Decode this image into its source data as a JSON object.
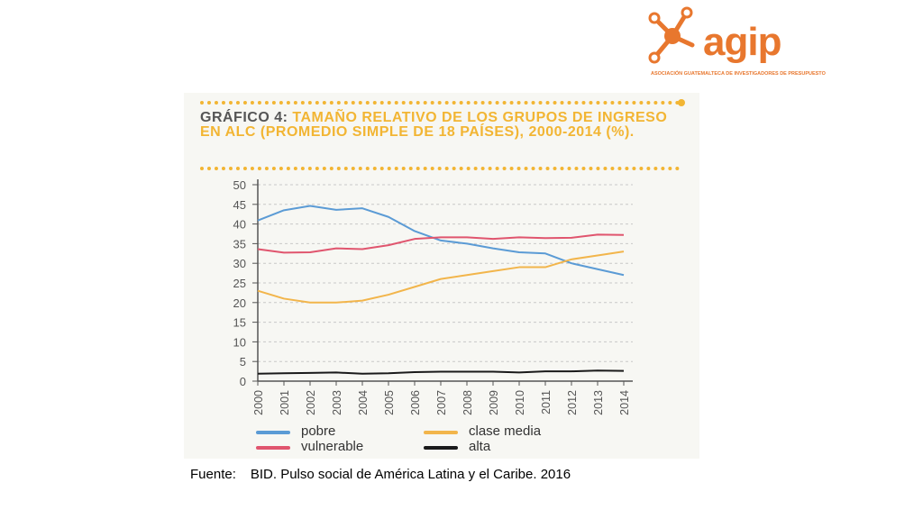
{
  "logo": {
    "brand": "agip",
    "subtitle": "ASOCIACIÓN GUATEMALTECA DE INVESTIGADORES DE PRESUPUESTO",
    "color": "#e8772e"
  },
  "source": {
    "label": "Fuente:",
    "text": "BID. Pulso social de América Latina y el Caribe. 2016"
  },
  "chart_data": {
    "type": "line",
    "title_label": "GRÁFICO 4:",
    "title": "TAMAÑO RELATIVO DE LOS GRUPOS DE INGRESO EN ALC (PROMEDIO SIMPLE DE 18 PAÍSES), 2000-2014 (%).",
    "xlabel": "",
    "ylabel": "",
    "ylim": [
      0,
      50
    ],
    "yticks": [
      0,
      5,
      10,
      15,
      20,
      25,
      30,
      35,
      40,
      45,
      50
    ],
    "grid": true,
    "legend_position": "bottom",
    "x": [
      "2000",
      "2001",
      "2002",
      "2003",
      "2004",
      "2005",
      "2006",
      "2007",
      "2008",
      "2009",
      "2010",
      "2011",
      "2012",
      "2013",
      "2014"
    ],
    "series": [
      {
        "name": "pobre",
        "color": "#5b9bd5",
        "values": [
          40.9,
          43.5,
          44.6,
          43.6,
          44.0,
          41.8,
          38.2,
          35.8,
          35.0,
          33.8,
          32.8,
          32.5,
          30.0,
          28.5,
          27.0
        ]
      },
      {
        "name": "vulnerable",
        "color": "#e0556e",
        "values": [
          33.6,
          32.7,
          32.8,
          33.8,
          33.6,
          34.6,
          36.2,
          36.6,
          36.6,
          36.2,
          36.6,
          36.4,
          36.5,
          37.3,
          37.2
        ]
      },
      {
        "name": "clase media",
        "color": "#f2b54b",
        "values": [
          23.0,
          21.0,
          20.0,
          20.0,
          20.5,
          22.0,
          24.0,
          26.0,
          27.0,
          28.0,
          29.0,
          29.0,
          31.0,
          32.0,
          33.0
        ]
      },
      {
        "name": "alta",
        "color": "#1a1a1a",
        "values": [
          1.9,
          2.0,
          2.1,
          2.2,
          1.9,
          2.0,
          2.3,
          2.4,
          2.4,
          2.4,
          2.2,
          2.5,
          2.5,
          2.7,
          2.6
        ]
      }
    ]
  }
}
